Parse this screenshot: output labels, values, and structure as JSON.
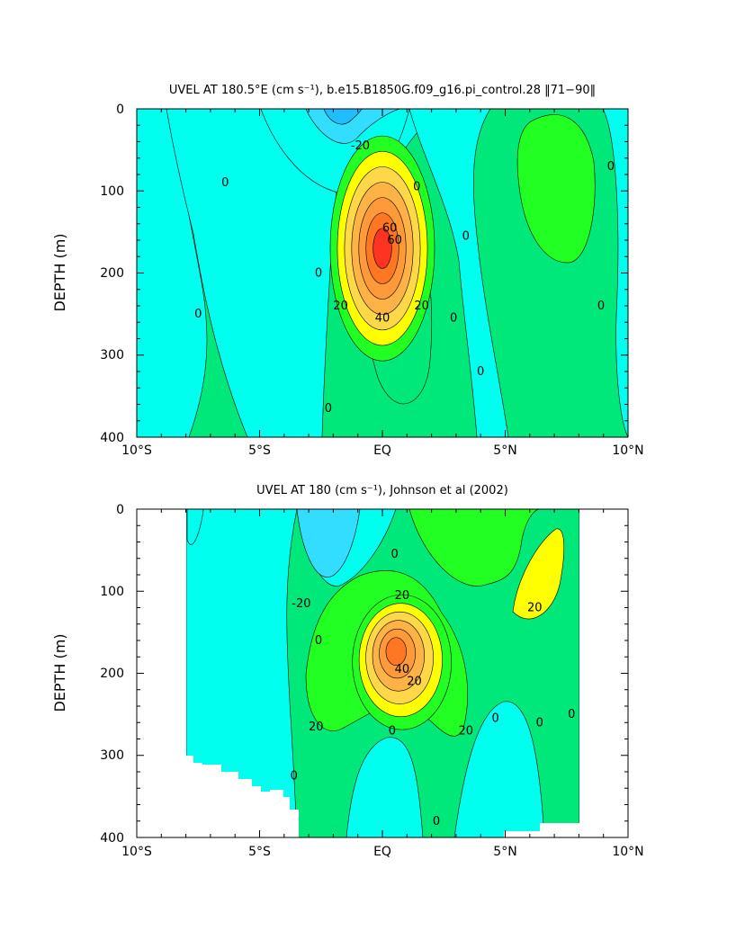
{
  "colors": {
    "c_neg30": "#1fbfff",
    "c_neg20": "#33ddff",
    "c_neg10": "#00ffee",
    "c_0": "#00e87a",
    "c_10": "#22ff22",
    "c_20": "#ffff00",
    "c_30": "#ffd84a",
    "c_40": "#ffb347",
    "c_50": "#ff9a3a",
    "c_60": "#ff7722",
    "c_70": "#ff3322"
  },
  "chart_data": [
    {
      "type": "contour",
      "title": "UVEL AT 180.5°E (cm s⁻¹), b.e15.B1850G.f09_g16.pi_control.28 ‖71−90‖",
      "xlabel": "",
      "ylabel": "DEPTH (m)",
      "x_range": [
        -10,
        10
      ],
      "y_range": [
        0,
        400
      ],
      "y_reversed": true,
      "x_ticks": [
        "10°S",
        "5°S",
        "EQ",
        "5°N",
        "10°N"
      ],
      "y_ticks": [
        "0",
        "100",
        "200",
        "300",
        "400"
      ],
      "contour_interval": 10,
      "core_max": 70,
      "core_lat": 0,
      "core_depth": 170,
      "contour_labels": [
        {
          "text": "0",
          "lat": -6.4,
          "depth": 90
        },
        {
          "text": "0",
          "lat": -7.5,
          "depth": 250
        },
        {
          "text": "-20",
          "lat": -0.9,
          "depth": 45
        },
        {
          "text": "0",
          "lat": 9.3,
          "depth": 70
        },
        {
          "text": "0",
          "lat": 1.4,
          "depth": 95
        },
        {
          "text": "60",
          "lat": 0.3,
          "depth": 145
        },
        {
          "text": "60",
          "lat": 0.5,
          "depth": 160
        },
        {
          "text": "0",
          "lat": 3.4,
          "depth": 155
        },
        {
          "text": "0",
          "lat": -2.6,
          "depth": 200
        },
        {
          "text": "20",
          "lat": -1.7,
          "depth": 240
        },
        {
          "text": "20",
          "lat": 1.6,
          "depth": 240
        },
        {
          "text": "40",
          "lat": 0,
          "depth": 255
        },
        {
          "text": "0",
          "lat": 2.9,
          "depth": 255
        },
        {
          "text": "0",
          "lat": 8.9,
          "depth": 240
        },
        {
          "text": "0",
          "lat": 4.0,
          "depth": 320
        },
        {
          "text": "0",
          "lat": -2.2,
          "depth": 365
        }
      ]
    },
    {
      "type": "contour",
      "title": "UVEL AT 180 (cm s⁻¹), Johnson et al (2002)",
      "xlabel": "",
      "ylabel": "DEPTH (m)",
      "x_range": [
        -10,
        10
      ],
      "y_range": [
        0,
        400
      ],
      "y_reversed": true,
      "x_ticks": [
        "10°S",
        "5°S",
        "EQ",
        "5°N",
        "10°N"
      ],
      "y_ticks": [
        "0",
        "100",
        "200",
        "300",
        "400"
      ],
      "data_lat_range": [
        -8,
        8
      ],
      "contour_interval": 10,
      "core_max": 60,
      "core_lat": 0.5,
      "core_depth": 170,
      "contour_labels": [
        {
          "text": "-20",
          "lat": -3.3,
          "depth": 115
        },
        {
          "text": "0",
          "lat": 0.5,
          "depth": 55
        },
        {
          "text": "20",
          "lat": 0.8,
          "depth": 105
        },
        {
          "text": "20",
          "lat": 6.2,
          "depth": 120
        },
        {
          "text": "0",
          "lat": -2.6,
          "depth": 160
        },
        {
          "text": "40",
          "lat": 0.8,
          "depth": 195
        },
        {
          "text": "20",
          "lat": 1.3,
          "depth": 210
        },
        {
          "text": "20",
          "lat": -2.7,
          "depth": 265
        },
        {
          "text": "20",
          "lat": 3.4,
          "depth": 270
        },
        {
          "text": "0",
          "lat": 0.4,
          "depth": 270
        },
        {
          "text": "0",
          "lat": 4.6,
          "depth": 255
        },
        {
          "text": "0",
          "lat": 6.4,
          "depth": 260
        },
        {
          "text": "0",
          "lat": 7.7,
          "depth": 250
        },
        {
          "text": "0",
          "lat": -3.6,
          "depth": 325
        },
        {
          "text": "0",
          "lat": 2.2,
          "depth": 380
        }
      ]
    }
  ]
}
